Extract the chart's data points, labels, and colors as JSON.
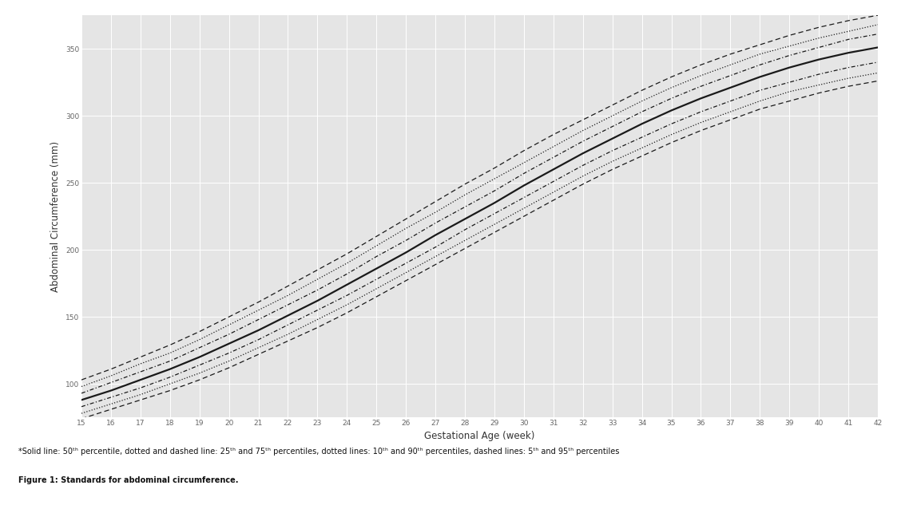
{
  "title": "",
  "xlabel": "Gestational Age (week)",
  "ylabel": "Abdominal Circumference (mm)",
  "xlim": [
    15,
    42
  ],
  "ylim": [
    75,
    375
  ],
  "xticks": [
    15,
    16,
    17,
    18,
    19,
    20,
    21,
    22,
    23,
    24,
    25,
    26,
    27,
    28,
    29,
    30,
    31,
    32,
    33,
    34,
    35,
    36,
    37,
    38,
    39,
    40,
    41,
    42
  ],
  "yticks": [
    100,
    150,
    200,
    250,
    300,
    350
  ],
  "background_color": "#e5e5e5",
  "grid_color": "#ffffff",
  "line_color": "#1a1a1a",
  "fig_width": 11.33,
  "fig_height": 6.38,
  "percentiles": {
    "p50": [
      88,
      95,
      103,
      111,
      120,
      130,
      140,
      151,
      162,
      174,
      186,
      198,
      211,
      223,
      235,
      248,
      260,
      272,
      283,
      294,
      304,
      313,
      321,
      329,
      336,
      342,
      347,
      351
    ],
    "p25": [
      83,
      90,
      97,
      105,
      114,
      123,
      133,
      144,
      155,
      166,
      178,
      190,
      202,
      215,
      227,
      239,
      251,
      263,
      274,
      284,
      294,
      303,
      311,
      319,
      325,
      331,
      336,
      340
    ],
    "p75": [
      93,
      101,
      109,
      117,
      127,
      137,
      148,
      159,
      170,
      182,
      195,
      207,
      220,
      232,
      244,
      257,
      269,
      281,
      292,
      303,
      313,
      322,
      330,
      338,
      345,
      351,
      357,
      361
    ],
    "p10": [
      78,
      85,
      92,
      100,
      108,
      117,
      127,
      137,
      148,
      159,
      171,
      183,
      195,
      207,
      219,
      231,
      243,
      255,
      266,
      276,
      286,
      295,
      303,
      311,
      318,
      323,
      328,
      332
    ],
    "p90": [
      98,
      106,
      115,
      123,
      133,
      144,
      155,
      166,
      178,
      190,
      203,
      216,
      228,
      241,
      253,
      265,
      277,
      289,
      300,
      311,
      321,
      330,
      338,
      346,
      352,
      358,
      363,
      368
    ],
    "p5": [
      74,
      81,
      88,
      95,
      103,
      112,
      122,
      132,
      142,
      153,
      165,
      177,
      189,
      201,
      213,
      225,
      237,
      249,
      260,
      270,
      280,
      289,
      297,
      305,
      311,
      317,
      322,
      326
    ],
    "p95": [
      103,
      111,
      120,
      129,
      139,
      150,
      161,
      173,
      185,
      197,
      210,
      223,
      236,
      249,
      261,
      274,
      286,
      297,
      308,
      319,
      329,
      338,
      346,
      353,
      360,
      366,
      371,
      375
    ]
  }
}
